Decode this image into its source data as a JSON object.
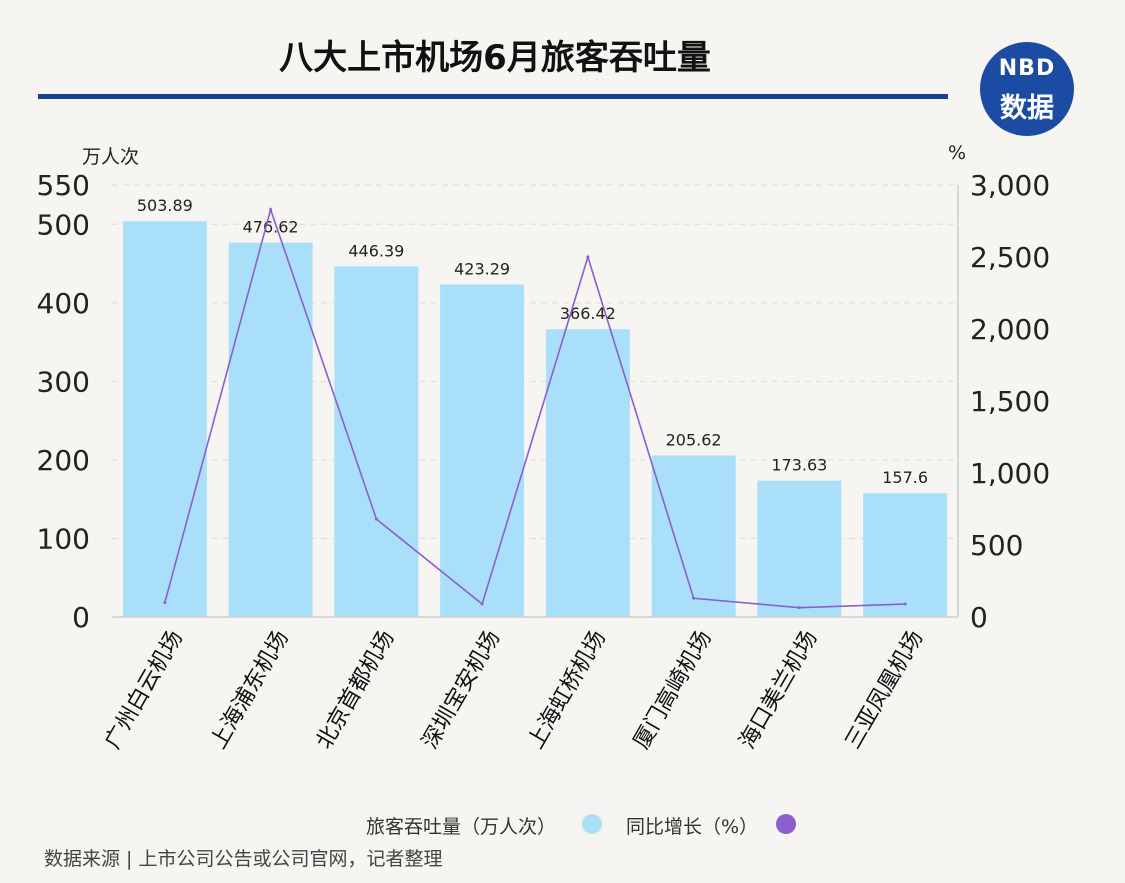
{
  "title": "八大上市机场6月旅客吞吐量",
  "logo": {
    "brand": "NBD",
    "text": "数据"
  },
  "y_left_unit": "万人次",
  "y_right_unit": "%",
  "legend": {
    "bar_label": "旅客吞吐量（万人次）",
    "line_label": "同比增长（%）"
  },
  "source": "数据来源 | 上市公司公告或公司官网，记者整理",
  "colors": {
    "bar": "#aadff9",
    "line": "#8b5fcf",
    "title_rule": "#17408f",
    "logo": "#1b4ba3"
  },
  "chart_data": {
    "type": "bar",
    "categories": [
      "广州白云机场",
      "上海浦东机场",
      "北京首都机场",
      "深圳宝安机场",
      "上海虹桥机场",
      "厦门高崎机场",
      "海口美兰机场",
      "三亚凤凰机场"
    ],
    "series": [
      {
        "name": "旅客吞吐量（万人次）",
        "type": "bar",
        "axis": "left",
        "values": [
          503.89,
          476.62,
          446.39,
          423.29,
          366.42,
          205.62,
          173.63,
          157.6
        ],
        "labels": [
          "503.89",
          "476.62",
          "446.39",
          "423.29",
          "366.42",
          "205.62",
          "173.63",
          "157.6"
        ]
      },
      {
        "name": "同比增长（%）",
        "type": "line",
        "axis": "right",
        "values": [
          100,
          2830,
          680,
          90,
          2500,
          130,
          65,
          90
        ]
      }
    ],
    "y_left": {
      "ticks": [
        0,
        100,
        200,
        300,
        400,
        500,
        550
      ],
      "range": [
        0,
        550
      ]
    },
    "y_right": {
      "ticks": [
        "0",
        "500",
        "1,000",
        "1,500",
        "2,000",
        "2,500",
        "3,000"
      ],
      "range": [
        0,
        3000
      ]
    },
    "grid": true
  }
}
